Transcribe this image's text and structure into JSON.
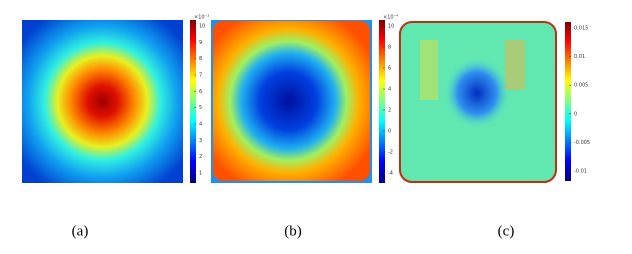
{
  "panels": [
    {
      "caption": "(a)",
      "colorbar": {
        "exponent": "×10⁻³",
        "ticks": [
          "10",
          "9",
          "8",
          "7",
          "6",
          "5",
          "4",
          "3",
          "2",
          "1"
        ]
      }
    },
    {
      "caption": "(b)",
      "colorbar": {
        "exponent": "×10⁻⁴",
        "ticks": [
          "10",
          "8",
          "6",
          "4",
          "2",
          "0",
          "-2",
          "-4"
        ]
      }
    },
    {
      "caption": "(c)",
      "colorbar": {
        "exponent": "",
        "ticks": [
          "0.015",
          "0.01",
          "0.005",
          "0",
          "-0.005",
          "-0.01"
        ]
      }
    }
  ]
}
